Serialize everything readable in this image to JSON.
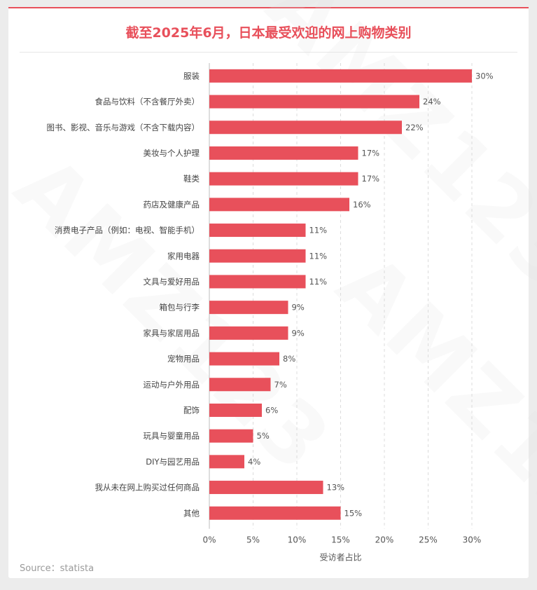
{
  "chart_data": {
    "type": "bar",
    "orientation": "horizontal",
    "title": "截至2025年6月，日本最受欢迎的网上购物类别",
    "xlabel": "受访者占比",
    "ylabel": "",
    "xlim": [
      0,
      30
    ],
    "xticks": [
      "0%",
      "5%",
      "10%",
      "15%",
      "20%",
      "25%",
      "30%"
    ],
    "grid": "vertical-dashed",
    "bar_color": "#e8505b",
    "categories": [
      "服装",
      "食品与饮料（不含餐厅外卖）",
      "图书、影视、音乐与游戏（不含下载内容）",
      "美妆与个人护理",
      "鞋类",
      "药店及健康产品",
      "消费电子产品（例如：电视、智能手机）",
      "家用电器",
      "文具与爱好用品",
      "箱包与行李",
      "家具与家居用品",
      "宠物用品",
      "运动与户外用品",
      "配饰",
      "玩具与婴童用品",
      "DIY与园艺用品",
      "我从未在网上购买过任何商品",
      "其他"
    ],
    "values": [
      30,
      24,
      22,
      17,
      17,
      16,
      11,
      11,
      11,
      9,
      9,
      8,
      7,
      6,
      5,
      4,
      13,
      15
    ],
    "value_labels": [
      "30%",
      "24%",
      "22%",
      "17%",
      "17%",
      "16%",
      "11%",
      "11%",
      "11%",
      "9%",
      "9%",
      "8%",
      "7%",
      "6%",
      "5%",
      "4%",
      "13%",
      "15%"
    ]
  },
  "source": "Source：statista",
  "watermark": "AMZ123",
  "colors": {
    "accent": "#e8505b",
    "text": "#444444",
    "muted": "#9a9a9a"
  }
}
